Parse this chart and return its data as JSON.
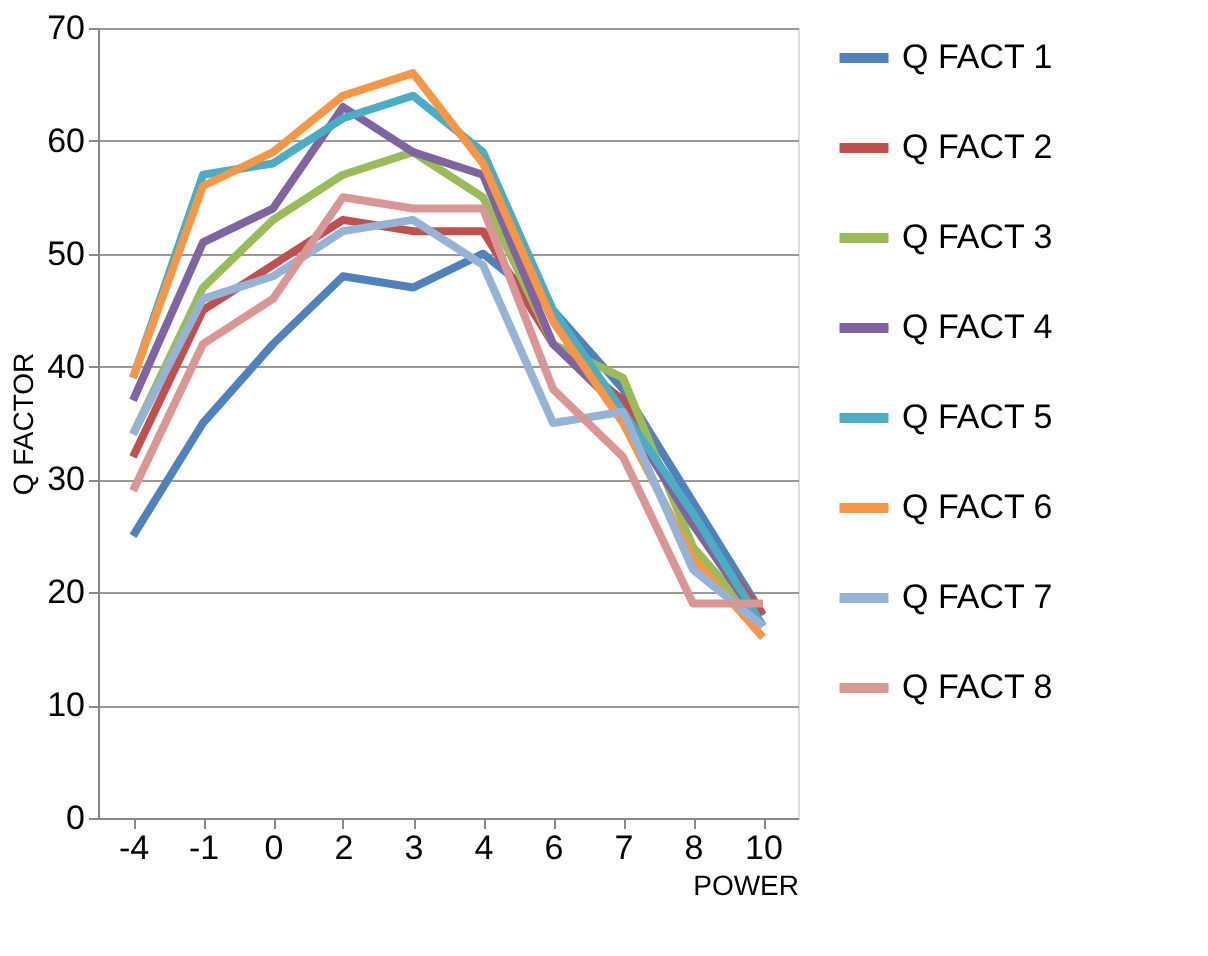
{
  "chart_data": {
    "type": "line",
    "xlabel": "POWER",
    "ylabel": "Q FACTOR",
    "categories": [
      "-4",
      "-1",
      "0",
      "2",
      "3",
      "4",
      "6",
      "7",
      "8",
      "10"
    ],
    "ylim": [
      0,
      70
    ],
    "yticks": [
      0,
      10,
      20,
      30,
      40,
      50,
      60,
      70
    ],
    "grid": "y",
    "legend": "right",
    "marker": "none",
    "line_style": "solid",
    "series": [
      {
        "name": "Q FACT 1",
        "color": "#4f81bd",
        "values": [
          25,
          35,
          42,
          48,
          47,
          50,
          45,
          38,
          28,
          18
        ]
      },
      {
        "name": "Q FACT 2",
        "color": "#c0504d",
        "values": [
          32,
          45,
          49,
          53,
          52,
          52,
          42,
          37,
          26,
          18
        ]
      },
      {
        "name": "Q FACT 3",
        "color": "#9bbb59",
        "values": [
          34,
          47,
          53,
          57,
          59,
          55,
          42,
          39,
          24,
          17
        ]
      },
      {
        "name": "Q FACT 4",
        "color": "#8064a2",
        "values": [
          37,
          51,
          54,
          63,
          59,
          57,
          42,
          36,
          26,
          17
        ]
      },
      {
        "name": "Q FACT 5",
        "color": "#4bacc6",
        "values": [
          39,
          57,
          58,
          62,
          64,
          59,
          45,
          36,
          27,
          17
        ]
      },
      {
        "name": "Q FACT 6",
        "color": "#f79646",
        "values": [
          39,
          56,
          59,
          64,
          66,
          58,
          44,
          35,
          23,
          16
        ]
      },
      {
        "name": "Q FACT 7",
        "color": "#95b3d7",
        "values": [
          34,
          46,
          48,
          52,
          53,
          49,
          35,
          36,
          22,
          17
        ]
      },
      {
        "name": "Q FACT 8",
        "color": "#d99694",
        "values": [
          29,
          42,
          46,
          55,
          54,
          54,
          38,
          32,
          19,
          19
        ]
      }
    ]
  }
}
